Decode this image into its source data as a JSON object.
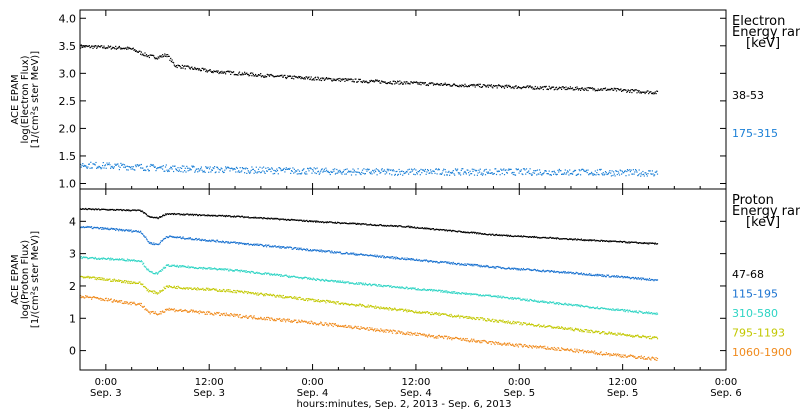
{
  "chart_data": {
    "type": "scatter",
    "x_axis": {
      "ticks": [
        {
          "time": "0:00",
          "date": "Sep. 3"
        },
        {
          "time": "12:00",
          "date": "Sep. 3"
        },
        {
          "time": "0:00",
          "date": "Sep. 4"
        },
        {
          "time": "12:00",
          "date": "Sep. 4"
        },
        {
          "time": "0:00",
          "date": "Sep. 5"
        },
        {
          "time": "12:00",
          "date": "Sep. 5"
        },
        {
          "time": "0:00",
          "date": "Sep. 6"
        }
      ],
      "range_hours": [
        -3,
        72
      ],
      "data_end_hours": 64,
      "label": "hours:minutes, Sep.  2, 2013 - Sep.  6, 2013"
    },
    "panels": [
      {
        "ylabel": [
          "ACE EPAM",
          "log(Electron Flux)",
          "[1/(cm²s ster MeV)]"
        ],
        "ylim": [
          0.9,
          4.15
        ],
        "yticks": [
          "1.0",
          "1.5",
          "2.0",
          "2.5",
          "3.0",
          "3.5",
          "4.0"
        ],
        "legend": {
          "title": [
            "Electron",
            "Energy ranges",
            "[keV]"
          ],
          "entries": [
            {
              "name": "38-53",
              "color": "#000000"
            },
            {
              "name": "175-315",
              "color": "#1a7fd6"
            }
          ]
        },
        "series": [
          {
            "name": "38-53",
            "color": "#000000",
            "noise": 0.03,
            "points": [
              [
                -3,
                3.5
              ],
              [
                2,
                3.47
              ],
              [
                3,
                3.45
              ],
              [
                4,
                3.38
              ],
              [
                5,
                3.32
              ],
              [
                6,
                3.3
              ],
              [
                7,
                3.35
              ],
              [
                8,
                3.15
              ],
              [
                12,
                3.05
              ],
              [
                20,
                2.95
              ],
              [
                30,
                2.87
              ],
              [
                40,
                2.8
              ],
              [
                50,
                2.75
              ],
              [
                58,
                2.72
              ],
              [
                64,
                2.66
              ]
            ]
          },
          {
            "name": "175-315",
            "color": "#1a7fd6",
            "noise": 0.06,
            "points": [
              [
                -3,
                1.35
              ],
              [
                10,
                1.27
              ],
              [
                30,
                1.22
              ],
              [
                50,
                1.22
              ],
              [
                64,
                1.2
              ]
            ]
          }
        ]
      },
      {
        "ylabel": [
          "ACE EPAM",
          "log(Proton Flux)",
          "[1/(cm²s ster MeV)]"
        ],
        "ylim": [
          -0.6,
          5.0
        ],
        "yticks": [
          "0",
          "1",
          "2",
          "3",
          "4"
        ],
        "legend": {
          "title": [
            "Proton",
            "Energy ranges",
            "[keV]"
          ],
          "entries": [
            {
              "name": "47-68",
              "color": "#000000"
            },
            {
              "name": "115-195",
              "color": "#1a72d0"
            },
            {
              "name": "310-580",
              "color": "#2ed4c4"
            },
            {
              "name": "795-1193",
              "color": "#c2c800"
            },
            {
              "name": "1060-1900",
              "color": "#f08a1c"
            }
          ]
        },
        "series": [
          {
            "name": "47-68",
            "color": "#000000",
            "noise": 0.02,
            "points": [
              [
                -3,
                4.4
              ],
              [
                4,
                4.35
              ],
              [
                5,
                4.15
              ],
              [
                6,
                4.12
              ],
              [
                7,
                4.25
              ],
              [
                15,
                4.17
              ],
              [
                25,
                4.0
              ],
              [
                35,
                3.85
              ],
              [
                45,
                3.6
              ],
              [
                55,
                3.45
              ],
              [
                64,
                3.32
              ]
            ]
          },
          {
            "name": "115-195",
            "color": "#1a72d0",
            "noise": 0.03,
            "points": [
              [
                -3,
                3.85
              ],
              [
                4,
                3.7
              ],
              [
                5,
                3.35
              ],
              [
                6,
                3.3
              ],
              [
                7,
                3.55
              ],
              [
                15,
                3.35
              ],
              [
                25,
                3.1
              ],
              [
                35,
                2.85
              ],
              [
                45,
                2.6
              ],
              [
                55,
                2.4
              ],
              [
                64,
                2.2
              ]
            ]
          },
          {
            "name": "310-580",
            "color": "#2ed4c4",
            "noise": 0.03,
            "points": [
              [
                -3,
                2.9
              ],
              [
                4,
                2.8
              ],
              [
                5,
                2.45
              ],
              [
                6,
                2.4
              ],
              [
                7,
                2.65
              ],
              [
                15,
                2.5
              ],
              [
                25,
                2.2
              ],
              [
                35,
                1.95
              ],
              [
                45,
                1.7
              ],
              [
                55,
                1.4
              ],
              [
                64,
                1.15
              ]
            ]
          },
          {
            "name": "795-1193",
            "color": "#c2c800",
            "noise": 0.04,
            "points": [
              [
                -3,
                2.3
              ],
              [
                4,
                2.1
              ],
              [
                5,
                1.85
              ],
              [
                6,
                1.8
              ],
              [
                7,
                2.0
              ],
              [
                15,
                1.85
              ],
              [
                25,
                1.55
              ],
              [
                35,
                1.25
              ],
              [
                45,
                0.95
              ],
              [
                55,
                0.65
              ],
              [
                64,
                0.4
              ]
            ]
          },
          {
            "name": "1060-1900",
            "color": "#f08a1c",
            "noise": 0.05,
            "points": [
              [
                -3,
                1.7
              ],
              [
                4,
                1.45
              ],
              [
                5,
                1.2
              ],
              [
                6,
                1.15
              ],
              [
                7,
                1.3
              ],
              [
                15,
                1.1
              ],
              [
                25,
                0.85
              ],
              [
                35,
                0.55
              ],
              [
                45,
                0.25
              ],
              [
                55,
                0.0
              ],
              [
                64,
                -0.25
              ]
            ]
          }
        ]
      }
    ]
  }
}
